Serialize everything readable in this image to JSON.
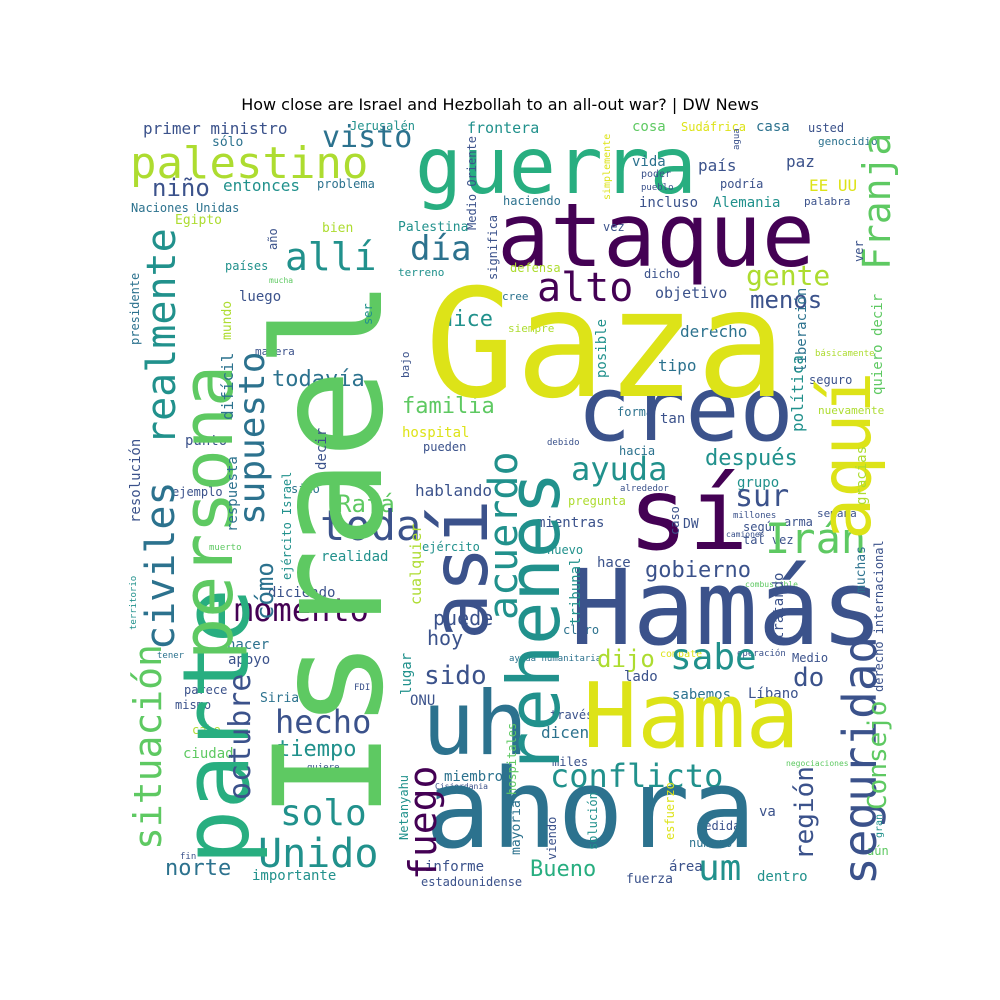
{
  "title": "How close are Israel and Hezbollah to an all-out war? | DW News",
  "palette": {
    "c1": "#440154",
    "c2": "#3b528b",
    "c3": "#2c728e",
    "c4": "#21918c",
    "c5": "#28ae80",
    "c6": "#5ec962",
    "c7": "#addc30",
    "c8": "#dde318"
  },
  "words": {
    "israel": "Israel",
    "gaza": "Gaza",
    "hamas": "Hamás",
    "ahora": "ahora",
    "guerra": "guerra",
    "ataque": "ataque",
    "parte": "parte",
    "persona": "persona",
    "si": "sí",
    "creo": "creo",
    "aqui": "aquí",
    "hama": "Hama",
    "uh": "uh",
    "asi": "así",
    "rehenes": "rehenes",
    "palestino": "palestino",
    "seguridad": "seguridad",
    "franja": "Franja",
    "visto": "visto",
    "primer_ministro": "primer ministro",
    "solo_tilde": "sólo",
    "nino": "niño",
    "entonces": "entonces",
    "naciones_unidas": "Naciones Unidas",
    "egipto": "Egipto",
    "jerusalen": "Jerusalén",
    "frontera": "frontera",
    "medio_oriente": "Medio Oriente",
    "simplemente": "simplemente",
    "sudafrica": "Sudáfrica",
    "cosa": "cosa",
    "casa": "casa",
    "usted": "usted",
    "genocidio": "genocidio",
    "problema": "problema",
    "dia": "día",
    "alli": "allí",
    "ano": "año",
    "bien": "bien",
    "palestina": "Palestina",
    "haciendo": "haciendo",
    "significa": "significa",
    "vida": "vida",
    "pais": "país",
    "poder": "poder",
    "pueblo": "pueblo",
    "podria": "podría",
    "agua": "agua",
    "ee_uu": "EE UU",
    "paz": "paz",
    "incluso": "incluso",
    "alemania": "Alemania",
    "palabra": "palabra",
    "vez": "vez",
    "alto": "alto",
    "gente": "gente",
    "menos": "menos",
    "realmente": "realmente",
    "civiles": "civiles",
    "supuesto": "supuesto",
    "paises": "países",
    "presidente": "presidente",
    "mucha": "mucha",
    "ser": "ser",
    "terreno": "terreno",
    "defensa": "defensa",
    "cree": "cree",
    "dicho": "dicho",
    "objetivo": "objetivo",
    "ver": "ver",
    "luego": "luego",
    "mundo": "mundo",
    "dice": "dice",
    "siempre": "siempre",
    "posible": "posible",
    "derecho": "derecho",
    "liberacion": "liberación",
    "quiero_decir": "quiero decir",
    "basicamente": "básicamente",
    "manera": "manera",
    "bajo": "bajo",
    "dificil": "difícil",
    "todavia": "todavía",
    "tipo": "tipo",
    "seguro": "seguro",
    "politica": "política",
    "resolucion": "resolución",
    "familia": "familia",
    "forma": "forma",
    "tan": "tan",
    "nuevamente": "nuevamente",
    "punto": "punto",
    "hospital": "hospital",
    "debido": "debido",
    "hacia": "hacia",
    "pueden": "pueden",
    "decir": "decir",
    "respuesta": "respuesta",
    "despues": "después",
    "grupo": "grupo",
    "gracias": "gracias",
    "muchas": "muchas",
    "ejemplo": "ejemplo",
    "ejercito_israel": "ejército Israel",
    "sino": "sino",
    "hablando": "hablando",
    "alrededor": "alrededor",
    "pregunta": "pregunta",
    "ayuda": "ayuda",
    "sur": "sur",
    "caso": "caso",
    "dw": "DW",
    "millones": "millones",
    "segun": "según",
    "arma": "arma",
    "tal_vez": "tal vez",
    "semana": "semana",
    "situacion": "situación",
    "rafa": "Rafá",
    "toda": "toda",
    "realidad": "realidad",
    "mientras": "mientras",
    "camiones": "camiones",
    "iran": "Irán",
    "derecho_internacional": "derecho internacional",
    "muerto": "muerto",
    "cualquier": "cualquier",
    "ejercito": "ejército",
    "nuevo": "nuevo",
    "tribunal": "tribunal",
    "hace": "hace",
    "territorio": "territorio",
    "como": "cómo",
    "diciendo": "diciendo",
    "momento": "momento",
    "acuerdo": "acuerdo",
    "gobierno": "gobierno",
    "combustible": "combustible",
    "tratando": "tratando",
    "puede": "puede",
    "hoy": "hoy",
    "claro": "claro",
    "hacer": "hacer",
    "apoyo": "apoyo",
    "tener": "tener",
    "lugar": "lugar",
    "ayuda_humanitaria": "ayuda humanitaria",
    "combate": "combate",
    "operacion": "operación",
    "medio": "Medio",
    "dijo": "dijo",
    "sabe": "sabe",
    "do": "do",
    "sido": "sido",
    "lado": "lado",
    "fdi": "FDI",
    "parece": "parece",
    "siria": "Siria",
    "mismo": "mismo",
    "onu": "ONU",
    "sabemos": "sabemos",
    "libano": "Líbano",
    "hecho": "hecho",
    "octubre": "octubre",
    "consejo": "Consejo",
    "cabo": "cabo",
    "tiempo": "tiempo",
    "traves": "través",
    "dicen": "dicen",
    "ciudad": "ciudad",
    "quiere": "quiere",
    "conflicto": "conflicto",
    "fuego": "fuego",
    "hospitales": "hospitales",
    "miles": "miles",
    "negociaciones": "negociaciones",
    "netanyahu": "Netanyahu",
    "cisjordania": "Cisjordania",
    "miembro": "miembro",
    "region": "región",
    "solo": "solo",
    "mayoria": "mayoría",
    "solucion": "solución",
    "esfuerzo": "esfuerzo",
    "medida": "medida",
    "va": "va",
    "gran": "gran",
    "unido": "Unido",
    "viendo": "viendo",
    "numero": "número",
    "aun": "aún",
    "fin": "fin",
    "norte": "norte",
    "informe": "informe",
    "area": "área",
    "bueno": "Bueno",
    "um": "um",
    "dentro": "dentro",
    "importante": "importante",
    "estadounidense": "estadounidense",
    "fuerza": "fuerza"
  }
}
